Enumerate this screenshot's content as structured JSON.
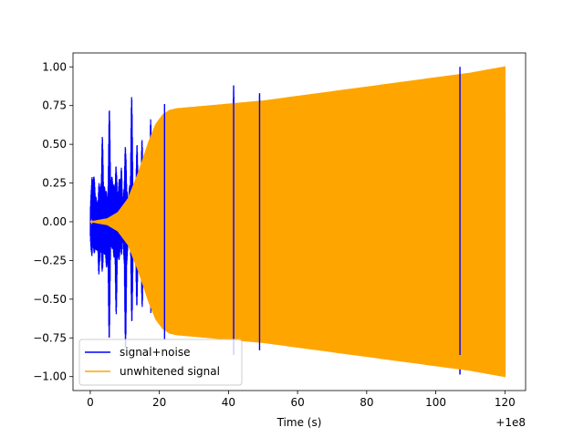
{
  "chart_data": {
    "type": "line",
    "title": "",
    "xlabel": "Time (s)",
    "ylabel": "",
    "x_offset_label": "+1e8",
    "xlim": [
      -5,
      126
    ],
    "ylim": [
      -1.09,
      1.09
    ],
    "x_ticks": [
      0,
      20,
      40,
      60,
      80,
      100,
      120
    ],
    "x_tick_labels": [
      "0",
      "20",
      "40",
      "60",
      "80",
      "100",
      "120"
    ],
    "y_ticks": [
      1.0,
      0.75,
      0.5,
      0.25,
      0.0,
      -0.25,
      -0.5,
      -0.75,
      -1.0
    ],
    "y_tick_labels": [
      "1.00",
      "0.75",
      "0.50",
      "0.25",
      "0.00",
      "−0.25",
      "−0.50",
      "−0.75",
      "−1.00"
    ],
    "grid": false,
    "legend_position": "bottom-left",
    "series": [
      {
        "name": "signal+noise",
        "color": "#0000ff",
        "bursts": [
          {
            "x": 0.5,
            "value": 0.3
          },
          {
            "x": 2.5,
            "value": 0.35
          },
          {
            "x": 3.5,
            "value": 0.55
          },
          {
            "x": 5.5,
            "value": 0.85
          },
          {
            "x": 7.5,
            "value": 0.6
          },
          {
            "x": 9.0,
            "value": 0.35
          },
          {
            "x": 10.2,
            "value": 0.82
          },
          {
            "x": 12.0,
            "value": 0.85
          },
          {
            "x": 13.5,
            "value": 0.6
          },
          {
            "x": 15.0,
            "value": 0.62
          },
          {
            "x": 17.5,
            "value": 0.72
          },
          {
            "x": 21.5,
            "value": 0.76
          },
          {
            "x": 41.5,
            "value": 0.88
          },
          {
            "x": 49.0,
            "value": 0.83
          },
          {
            "x": 107.0,
            "value": 1.0
          }
        ]
      },
      {
        "name": "unwhitened signal",
        "color": "#ffa500",
        "envelope": [
          {
            "x": 0,
            "value": 0.0
          },
          {
            "x": 5,
            "value": 0.02
          },
          {
            "x": 8,
            "value": 0.06
          },
          {
            "x": 11,
            "value": 0.15
          },
          {
            "x": 14,
            "value": 0.32
          },
          {
            "x": 17,
            "value": 0.52
          },
          {
            "x": 19,
            "value": 0.63
          },
          {
            "x": 21,
            "value": 0.69
          },
          {
            "x": 23,
            "value": 0.72
          },
          {
            "x": 25,
            "value": 0.73
          },
          {
            "x": 30,
            "value": 0.74
          },
          {
            "x": 40,
            "value": 0.76
          },
          {
            "x": 50,
            "value": 0.78
          },
          {
            "x": 60,
            "value": 0.81
          },
          {
            "x": 70,
            "value": 0.84
          },
          {
            "x": 80,
            "value": 0.87
          },
          {
            "x": 90,
            "value": 0.9
          },
          {
            "x": 100,
            "value": 0.93
          },
          {
            "x": 110,
            "value": 0.96
          },
          {
            "x": 120,
            "value": 1.0
          }
        ]
      }
    ]
  }
}
